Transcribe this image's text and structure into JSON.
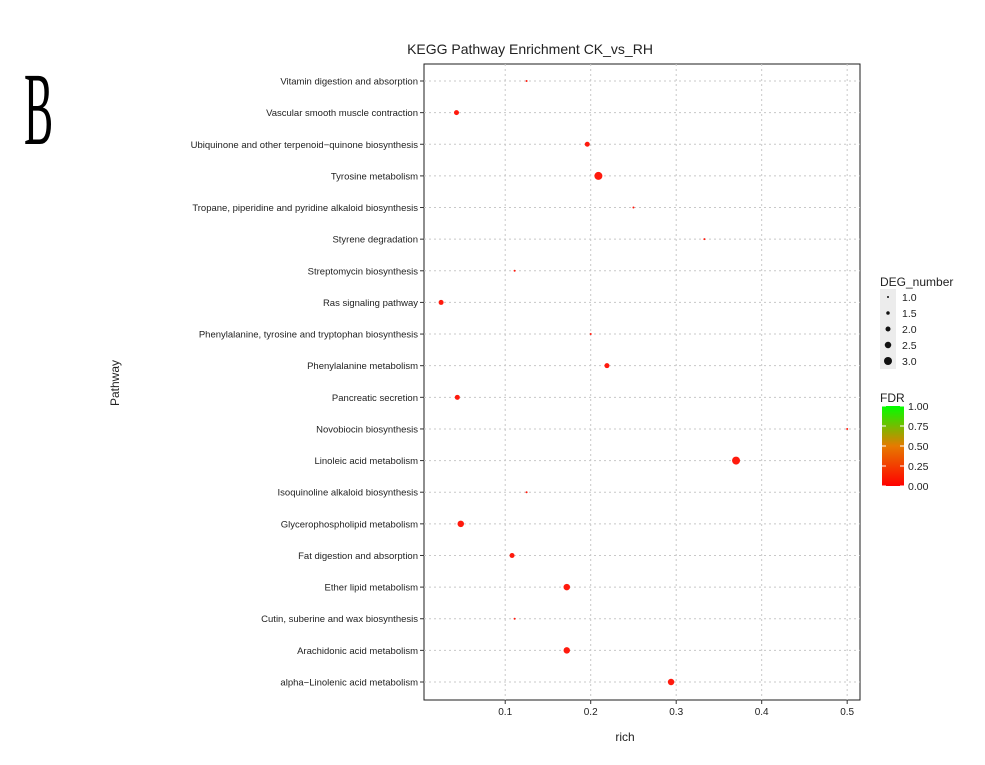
{
  "panel_label": "B",
  "chart_data": {
    "type": "scatter",
    "title": "KEGG Pathway Enrichment  CK_vs_RH",
    "xlabel": "rich",
    "ylabel": "Pathway",
    "xlim": [
      0.005,
      0.515
    ],
    "xticks": [
      "0.1",
      "0.2",
      "0.3",
      "0.4",
      "0.5"
    ],
    "grid": true,
    "categories": [
      "Vitamin digestion and absorption",
      "Vascular smooth muscle contraction",
      "Ubiquinone and other terpenoid−quinone biosynthesis",
      "Tyrosine metabolism",
      "Tropane, piperidine and pyridine alkaloid biosynthesis",
      "Styrene degradation",
      "Streptomycin biosynthesis",
      "Ras signaling pathway",
      "Phenylalanine, tyrosine and tryptophan biosynthesis",
      "Phenylalanine metabolism",
      "Pancreatic secretion",
      "Novobiocin biosynthesis",
      "Linoleic acid metabolism",
      "Isoquinoline alkaloid biosynthesis",
      "Glycerophospholipid metabolism",
      "Fat digestion and absorption",
      "Ether lipid metabolism",
      "Cutin, suberine and wax biosynthesis",
      "Arachidonic acid metabolism",
      "alpha−Linolenic acid metabolism"
    ],
    "points": [
      {
        "pathway": "Vitamin digestion and absorption",
        "rich": 0.125,
        "deg_number": 1,
        "fdr": 0.0
      },
      {
        "pathway": "Vascular smooth muscle contraction",
        "rich": 0.043,
        "deg_number": 2,
        "fdr": 0.0
      },
      {
        "pathway": "Ubiquinone and other terpenoid−quinone biosynthesis",
        "rich": 0.196,
        "deg_number": 2,
        "fdr": 0.0
      },
      {
        "pathway": "Tyrosine metabolism",
        "rich": 0.209,
        "deg_number": 3,
        "fdr": 0.0
      },
      {
        "pathway": "Tropane, piperidine and pyridine alkaloid biosynthesis",
        "rich": 0.25,
        "deg_number": 1,
        "fdr": 0.0
      },
      {
        "pathway": "Styrene degradation",
        "rich": 0.333,
        "deg_number": 1,
        "fdr": 0.0
      },
      {
        "pathway": "Streptomycin biosynthesis",
        "rich": 0.111,
        "deg_number": 1,
        "fdr": 0.0
      },
      {
        "pathway": "Ras signaling pathway",
        "rich": 0.025,
        "deg_number": 2,
        "fdr": 0.0
      },
      {
        "pathway": "Phenylalanine, tyrosine and tryptophan biosynthesis",
        "rich": 0.2,
        "deg_number": 1,
        "fdr": 0.0
      },
      {
        "pathway": "Phenylalanine metabolism",
        "rich": 0.219,
        "deg_number": 2,
        "fdr": 0.0
      },
      {
        "pathway": "Pancreatic secretion",
        "rich": 0.044,
        "deg_number": 2,
        "fdr": 0.0
      },
      {
        "pathway": "Novobiocin biosynthesis",
        "rich": 0.5,
        "deg_number": 1,
        "fdr": 0.0
      },
      {
        "pathway": "Linoleic acid metabolism",
        "rich": 0.37,
        "deg_number": 3,
        "fdr": 0.0
      },
      {
        "pathway": "Isoquinoline alkaloid biosynthesis",
        "rich": 0.125,
        "deg_number": 1,
        "fdr": 0.0
      },
      {
        "pathway": "Glycerophospholipid metabolism",
        "rich": 0.048,
        "deg_number": 2.5,
        "fdr": 0.0
      },
      {
        "pathway": "Fat digestion and absorption",
        "rich": 0.108,
        "deg_number": 2,
        "fdr": 0.0
      },
      {
        "pathway": "Ether lipid metabolism",
        "rich": 0.172,
        "deg_number": 2.5,
        "fdr": 0.0
      },
      {
        "pathway": "Cutin, suberine and wax biosynthesis",
        "rich": 0.111,
        "deg_number": 1,
        "fdr": 0.0
      },
      {
        "pathway": "Arachidonic acid metabolism",
        "rich": 0.172,
        "deg_number": 2.5,
        "fdr": 0.0
      },
      {
        "pathway": "alpha−Linolenic acid metabolism",
        "rich": 0.294,
        "deg_number": 2.5,
        "fdr": 0.0
      }
    ],
    "size_legend": {
      "title": "DEG_number",
      "entries": [
        {
          "label": "1.0",
          "value": 1.0
        },
        {
          "label": "1.5",
          "value": 1.5
        },
        {
          "label": "2.0",
          "value": 2.0
        },
        {
          "label": "2.5",
          "value": 2.5
        },
        {
          "label": "3.0",
          "value": 3.0
        }
      ]
    },
    "color_legend": {
      "title": "FDR",
      "ticks": [
        "1.00",
        "0.75",
        "0.50",
        "0.25",
        "0.00"
      ],
      "low_color": "#ff0000",
      "high_color": "#00ff00"
    },
    "point_color": "#ff1a0d",
    "grid_color": "#c8c8c8"
  }
}
